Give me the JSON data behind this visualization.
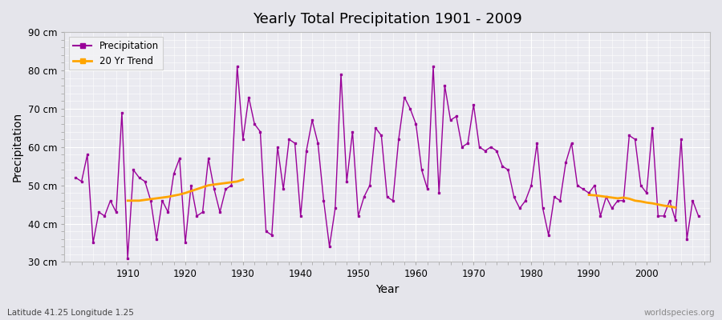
{
  "title": "Yearly Total Precipitation 1901 - 2009",
  "xlabel": "Year",
  "ylabel": "Precipitation",
  "subtitle": "Latitude 41.25 Longitude 1.25",
  "watermark": "worldspecies.org",
  "years": [
    1901,
    1902,
    1903,
    1904,
    1905,
    1906,
    1907,
    1908,
    1909,
    1910,
    1911,
    1912,
    1913,
    1914,
    1915,
    1916,
    1917,
    1918,
    1919,
    1920,
    1921,
    1922,
    1923,
    1924,
    1925,
    1926,
    1927,
    1928,
    1929,
    1930,
    1931,
    1932,
    1933,
    1934,
    1935,
    1936,
    1937,
    1938,
    1939,
    1940,
    1941,
    1942,
    1943,
    1944,
    1945,
    1946,
    1947,
    1948,
    1949,
    1950,
    1951,
    1952,
    1953,
    1954,
    1955,
    1956,
    1957,
    1958,
    1959,
    1960,
    1961,
    1962,
    1963,
    1964,
    1965,
    1966,
    1967,
    1968,
    1969,
    1970,
    1971,
    1972,
    1973,
    1974,
    1975,
    1976,
    1977,
    1978,
    1979,
    1980,
    1981,
    1982,
    1983,
    1984,
    1985,
    1986,
    1987,
    1988,
    1989,
    1990,
    1991,
    1992,
    1993,
    1994,
    1995,
    1996,
    1997,
    1998,
    1999,
    2000,
    2001,
    2002,
    2003,
    2004,
    2005,
    2006,
    2007,
    2008,
    2009
  ],
  "precip": [
    52,
    51,
    58,
    35,
    43,
    42,
    46,
    43,
    69,
    31,
    54,
    52,
    51,
    46,
    36,
    46,
    43,
    53,
    57,
    35,
    50,
    42,
    43,
    57,
    49,
    43,
    49,
    50,
    81,
    62,
    73,
    66,
    64,
    38,
    37,
    60,
    49,
    62,
    61,
    42,
    59,
    67,
    61,
    46,
    34,
    44,
    79,
    51,
    64,
    42,
    47,
    50,
    65,
    63,
    47,
    46,
    62,
    73,
    70,
    66,
    54,
    49,
    81,
    48,
    76,
    67,
    68,
    60,
    61,
    71,
    60,
    59,
    60,
    59,
    55,
    54,
    47,
    44,
    46,
    50,
    61,
    44,
    37,
    47,
    46,
    56,
    61,
    50,
    49,
    48,
    50,
    42,
    47,
    44,
    46,
    46,
    63,
    62,
    50,
    48,
    65,
    42,
    42,
    46,
    41,
    62,
    36,
    46,
    42
  ],
  "trend_segment1_years": [
    1910,
    1911,
    1912,
    1913,
    1914,
    1915,
    1916,
    1917,
    1918,
    1919,
    1920,
    1921,
    1922,
    1923,
    1924,
    1925,
    1926,
    1927,
    1928,
    1929,
    1930
  ],
  "trend_segment1_vals": [
    46.0,
    46.0,
    46.0,
    46.2,
    46.4,
    46.6,
    46.8,
    47.0,
    47.3,
    47.6,
    48.0,
    48.5,
    49.0,
    49.5,
    50.0,
    50.2,
    50.4,
    50.6,
    50.8,
    51.0,
    51.5
  ],
  "trend_segment2_years": [
    1990,
    1991,
    1992,
    1993,
    1994,
    1995,
    1996,
    1997,
    1998,
    1999,
    2000,
    2001,
    2002,
    2003,
    2004,
    2005
  ],
  "trend_segment2_vals": [
    47.5,
    47.4,
    47.2,
    47.0,
    46.8,
    46.6,
    46.8,
    46.5,
    46.0,
    45.8,
    45.5,
    45.3,
    45.0,
    44.7,
    44.5,
    44.2
  ],
  "precip_color": "#990099",
  "trend_color": "#FFA500",
  "bg_color": "#e5e5eb",
  "plot_bg_color": "#eaeaf0",
  "grid_color": "#ffffff",
  "ylim": [
    30,
    90
  ],
  "yticks": [
    30,
    40,
    50,
    60,
    70,
    80,
    90
  ],
  "ytick_labels": [
    "30 cm",
    "40 cm",
    "50 cm",
    "60 cm",
    "70 cm",
    "80 cm",
    "90 cm"
  ],
  "xlim": [
    1899,
    2011
  ],
  "xticks": [
    1910,
    1920,
    1930,
    1940,
    1950,
    1960,
    1970,
    1980,
    1990,
    2000
  ]
}
